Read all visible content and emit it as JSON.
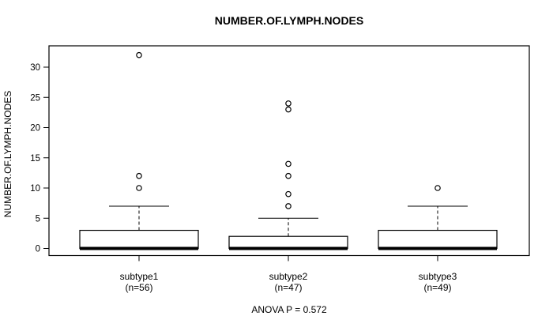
{
  "chart_data": {
    "type": "boxplot",
    "title": "NUMBER.OF.LYMPH.NODES",
    "ylabel": "NUMBER.OF.LYMPH.NODES",
    "xlabel": "",
    "annotation": "ANOVA P = 0.572",
    "ylim": [
      0,
      33
    ],
    "yticks": [
      0,
      5,
      10,
      15,
      20,
      25,
      30
    ],
    "grid": false,
    "legend": null,
    "colors": {
      "stroke": "#000000",
      "box_fill": "#ffffff",
      "background": "#ffffff"
    },
    "groups": [
      {
        "label": "subtype1",
        "sublabel": "(n=56)",
        "n": 56,
        "q1": 0,
        "median": 0,
        "q3": 3,
        "whisker_low": 0,
        "whisker_high": 7,
        "outliers": [
          10,
          12,
          32
        ]
      },
      {
        "label": "subtype2",
        "sublabel": "(n=47)",
        "n": 47,
        "q1": 0,
        "median": 0,
        "q3": 2,
        "whisker_low": 0,
        "whisker_high": 5,
        "outliers": [
          7,
          9,
          12,
          14,
          23,
          24
        ]
      },
      {
        "label": "subtype3",
        "sublabel": "(n=49)",
        "n": 49,
        "q1": 0,
        "median": 0,
        "q3": 3,
        "whisker_low": 0,
        "whisker_high": 7,
        "outliers": [
          10
        ]
      }
    ]
  }
}
